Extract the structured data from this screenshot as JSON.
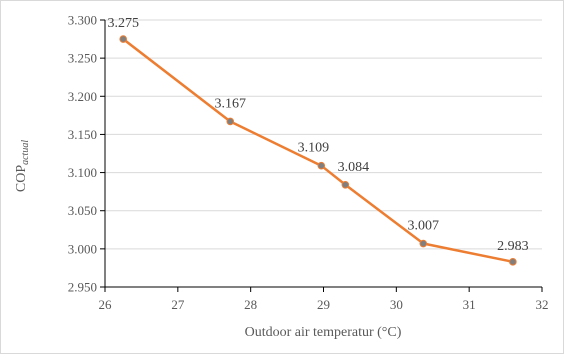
{
  "chart_data": {
    "type": "line",
    "xlabel": "Outdoor air  temperatur (°C)",
    "ylabel_main": "COP",
    "ylabel_sub": "actual",
    "xlim": [
      26,
      32
    ],
    "ylim": [
      2.95,
      3.3
    ],
    "x_ticks": [
      26,
      27,
      28,
      29,
      30,
      31,
      32
    ],
    "y_ticks": [
      2.95,
      3.0,
      3.05,
      3.1,
      3.15,
      3.2,
      3.25,
      3.3
    ],
    "y_tick_labels": [
      "2.950",
      "3.000",
      "3.050",
      "3.100",
      "3.150",
      "3.200",
      "3.250",
      "3.300"
    ],
    "grid": "horizontal",
    "legend": "none",
    "series": [
      {
        "x": [
          26.25,
          27.72,
          28.97,
          29.3,
          30.37,
          31.6
        ],
        "y": [
          3.275,
          3.167,
          3.109,
          3.084,
          3.007,
          2.983
        ],
        "labels": [
          "3.275",
          "3.167",
          "3.109",
          "3.084",
          "3.007",
          "2.983"
        ],
        "color": "#ED7D31",
        "marker_color": "#7F7F7F"
      }
    ]
  }
}
